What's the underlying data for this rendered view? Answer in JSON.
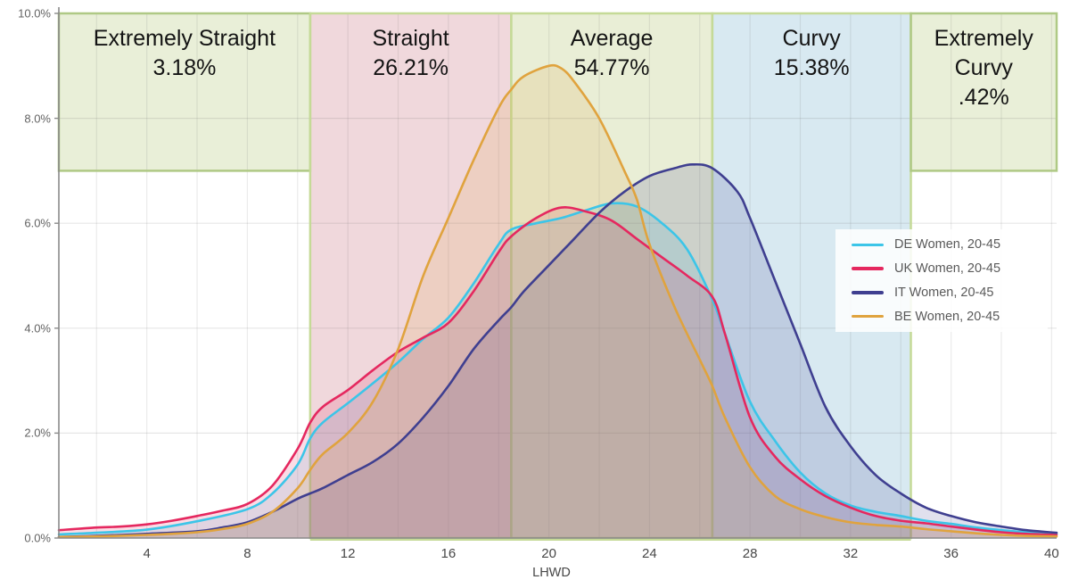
{
  "chart_data": {
    "type": "area",
    "title": "",
    "xlabel": "LHWD",
    "ylabel": "",
    "x_range": [
      0.5,
      40.2
    ],
    "y_range_pct": [
      0,
      10
    ],
    "grid": {
      "v_step": 2,
      "h_step_pct": 2,
      "on": true
    },
    "x_ticks": [
      {
        "value": 4,
        "label": "4"
      },
      {
        "value": 8,
        "label": "8"
      },
      {
        "value": 12,
        "label": "12"
      },
      {
        "value": 16,
        "label": "16"
      },
      {
        "value": 20,
        "label": "20"
      },
      {
        "value": 24,
        "label": "24"
      },
      {
        "value": 28,
        "label": "28"
      },
      {
        "value": 32,
        "label": "32"
      },
      {
        "value": 36,
        "label": "36"
      },
      {
        "value": 40,
        "label": "40"
      }
    ],
    "y_ticks": [
      {
        "value": 0,
        "label": "0.0%"
      },
      {
        "value": 2,
        "label": "2.0%"
      },
      {
        "value": 4,
        "label": "4.0%"
      },
      {
        "value": 6,
        "label": "6.0%"
      },
      {
        "value": 8,
        "label": "8.0%"
      },
      {
        "value": 10,
        "label": "10.0%"
      }
    ],
    "bands": [
      {
        "name": "extremely-straight",
        "lines": [
          "Extremely Straight",
          "3.18%"
        ],
        "x0": 0.5,
        "x1": 10.5,
        "fill": "#e9efd8",
        "border": "#afc985",
        "full_height": false,
        "box_bottom_pct": 7
      },
      {
        "name": "straight",
        "lines": [
          "Straight",
          "26.21%"
        ],
        "x0": 10.5,
        "x1": 18.5,
        "fill": "#f0d8dc",
        "border": "#c5da97",
        "full_height": true
      },
      {
        "name": "average",
        "lines": [
          "Average",
          "54.77%"
        ],
        "x0": 18.5,
        "x1": 26.5,
        "fill": "#e9eed6",
        "border": "#c5da97",
        "full_height": true
      },
      {
        "name": "curvy",
        "lines": [
          "Curvy",
          "15.38%"
        ],
        "x0": 26.5,
        "x1": 34.4,
        "fill": "#d8e9f1",
        "border": "#c5da97",
        "full_height": true
      },
      {
        "name": "extremely-curvy",
        "lines": [
          "Extremely",
          "Curvy",
          ".42%"
        ],
        "x0": 34.4,
        "x1": 40.2,
        "fill": "#e9efd8",
        "border": "#afc985",
        "full_height": false,
        "box_bottom_pct": 7
      }
    ],
    "series": [
      {
        "name": "DE Women, 20-45",
        "color": "#3cc5e8",
        "fill_opacity": 0.16,
        "points": [
          [
            0.5,
            0.07
          ],
          [
            2,
            0.1
          ],
          [
            4,
            0.16
          ],
          [
            6,
            0.32
          ],
          [
            8,
            0.55
          ],
          [
            9,
            0.85
          ],
          [
            10,
            1.4
          ],
          [
            10.5,
            1.9
          ],
          [
            11,
            2.2
          ],
          [
            12,
            2.57
          ],
          [
            13,
            2.95
          ],
          [
            14,
            3.35
          ],
          [
            15,
            3.8
          ],
          [
            16,
            4.2
          ],
          [
            17,
            4.85
          ],
          [
            18,
            5.6
          ],
          [
            18.5,
            5.88
          ],
          [
            19.5,
            6.0
          ],
          [
            20.5,
            6.1
          ],
          [
            21.5,
            6.25
          ],
          [
            22.5,
            6.38
          ],
          [
            23.5,
            6.32
          ],
          [
            24.5,
            6.0
          ],
          [
            25.5,
            5.5
          ],
          [
            26.5,
            4.55
          ],
          [
            27,
            3.9
          ],
          [
            28,
            2.6
          ],
          [
            29,
            1.85
          ],
          [
            30,
            1.25
          ],
          [
            31,
            0.85
          ],
          [
            32,
            0.62
          ],
          [
            33,
            0.5
          ],
          [
            34,
            0.42
          ],
          [
            35,
            0.33
          ],
          [
            36,
            0.27
          ],
          [
            37,
            0.2
          ],
          [
            38,
            0.15
          ],
          [
            39,
            0.11
          ],
          [
            40.2,
            0.08
          ]
        ]
      },
      {
        "name": "UK Women, 20-45",
        "color": "#e5285f",
        "fill_opacity": 0.16,
        "points": [
          [
            0.5,
            0.15
          ],
          [
            2,
            0.2
          ],
          [
            3,
            0.22
          ],
          [
            4,
            0.26
          ],
          [
            5,
            0.33
          ],
          [
            6,
            0.42
          ],
          [
            7,
            0.52
          ],
          [
            8,
            0.65
          ],
          [
            9,
            1.0
          ],
          [
            10,
            1.7
          ],
          [
            10.5,
            2.2
          ],
          [
            11,
            2.5
          ],
          [
            12,
            2.82
          ],
          [
            13,
            3.2
          ],
          [
            14,
            3.55
          ],
          [
            15,
            3.82
          ],
          [
            16,
            4.1
          ],
          [
            17,
            4.7
          ],
          [
            18,
            5.45
          ],
          [
            18.5,
            5.75
          ],
          [
            19.5,
            6.1
          ],
          [
            20.5,
            6.3
          ],
          [
            21.5,
            6.22
          ],
          [
            22.5,
            6.05
          ],
          [
            23.5,
            5.7
          ],
          [
            24.5,
            5.35
          ],
          [
            25.5,
            5.0
          ],
          [
            26.5,
            4.6
          ],
          [
            27,
            3.9
          ],
          [
            28,
            2.3
          ],
          [
            29,
            1.55
          ],
          [
            30,
            1.12
          ],
          [
            31,
            0.8
          ],
          [
            32,
            0.58
          ],
          [
            33,
            0.42
          ],
          [
            34,
            0.33
          ],
          [
            35,
            0.28
          ],
          [
            36,
            0.22
          ],
          [
            37,
            0.16
          ],
          [
            38,
            0.11
          ],
          [
            39,
            0.08
          ],
          [
            40.2,
            0.06
          ]
        ]
      },
      {
        "name": "IT Women, 20-45",
        "color": "#3f3f90",
        "fill_opacity": 0.16,
        "points": [
          [
            0.5,
            0.02
          ],
          [
            2,
            0.04
          ],
          [
            4,
            0.08
          ],
          [
            6,
            0.13
          ],
          [
            7,
            0.2
          ],
          [
            8,
            0.3
          ],
          [
            9,
            0.5
          ],
          [
            10,
            0.75
          ],
          [
            10.5,
            0.85
          ],
          [
            11,
            0.95
          ],
          [
            12,
            1.2
          ],
          [
            13,
            1.45
          ],
          [
            14,
            1.8
          ],
          [
            15,
            2.3
          ],
          [
            16,
            2.9
          ],
          [
            17,
            3.6
          ],
          [
            18,
            4.15
          ],
          [
            18.5,
            4.4
          ],
          [
            19,
            4.7
          ],
          [
            20,
            5.2
          ],
          [
            21,
            5.7
          ],
          [
            22,
            6.2
          ],
          [
            23,
            6.6
          ],
          [
            24,
            6.9
          ],
          [
            25,
            7.05
          ],
          [
            25.7,
            7.12
          ],
          [
            26.5,
            7.05
          ],
          [
            27.5,
            6.6
          ],
          [
            28,
            6.1
          ],
          [
            29,
            4.9
          ],
          [
            30,
            3.7
          ],
          [
            31,
            2.5
          ],
          [
            32,
            1.75
          ],
          [
            33,
            1.2
          ],
          [
            34,
            0.85
          ],
          [
            35,
            0.58
          ],
          [
            36,
            0.42
          ],
          [
            37,
            0.3
          ],
          [
            38,
            0.22
          ],
          [
            39,
            0.15
          ],
          [
            40.2,
            0.1
          ]
        ]
      },
      {
        "name": "BE Women, 20-45",
        "color": "#e0a33e",
        "fill_opacity": 0.16,
        "points": [
          [
            0.5,
            0.02
          ],
          [
            2,
            0.03
          ],
          [
            4,
            0.06
          ],
          [
            5,
            0.08
          ],
          [
            6,
            0.11
          ],
          [
            7,
            0.17
          ],
          [
            8,
            0.27
          ],
          [
            9,
            0.5
          ],
          [
            10,
            0.95
          ],
          [
            10.5,
            1.3
          ],
          [
            11,
            1.6
          ],
          [
            12,
            2.0
          ],
          [
            13,
            2.6
          ],
          [
            14,
            3.6
          ],
          [
            15,
            5.0
          ],
          [
            16,
            6.1
          ],
          [
            17,
            7.2
          ],
          [
            18,
            8.2
          ],
          [
            18.5,
            8.55
          ],
          [
            19,
            8.8
          ],
          [
            20,
            9.0
          ],
          [
            20.5,
            8.95
          ],
          [
            21,
            8.7
          ],
          [
            22,
            8.0
          ],
          [
            23,
            7.0
          ],
          [
            23.5,
            6.45
          ],
          [
            24,
            5.6
          ],
          [
            25,
            4.4
          ],
          [
            26,
            3.4
          ],
          [
            26.5,
            2.9
          ],
          [
            27,
            2.3
          ],
          [
            28,
            1.35
          ],
          [
            29,
            0.8
          ],
          [
            30,
            0.55
          ],
          [
            31,
            0.4
          ],
          [
            32,
            0.3
          ],
          [
            33,
            0.25
          ],
          [
            34,
            0.22
          ],
          [
            35,
            0.17
          ],
          [
            36,
            0.13
          ],
          [
            37,
            0.09
          ],
          [
            38,
            0.06
          ],
          [
            39,
            0.04
          ],
          [
            40.2,
            0.03
          ]
        ]
      }
    ]
  },
  "colors": {
    "axis": "#8a8a8a",
    "grid_v": "rgba(100,100,100,0.13)",
    "grid_h": "rgba(100,100,100,0.16)",
    "bottom_band_line": "#c5da97"
  }
}
